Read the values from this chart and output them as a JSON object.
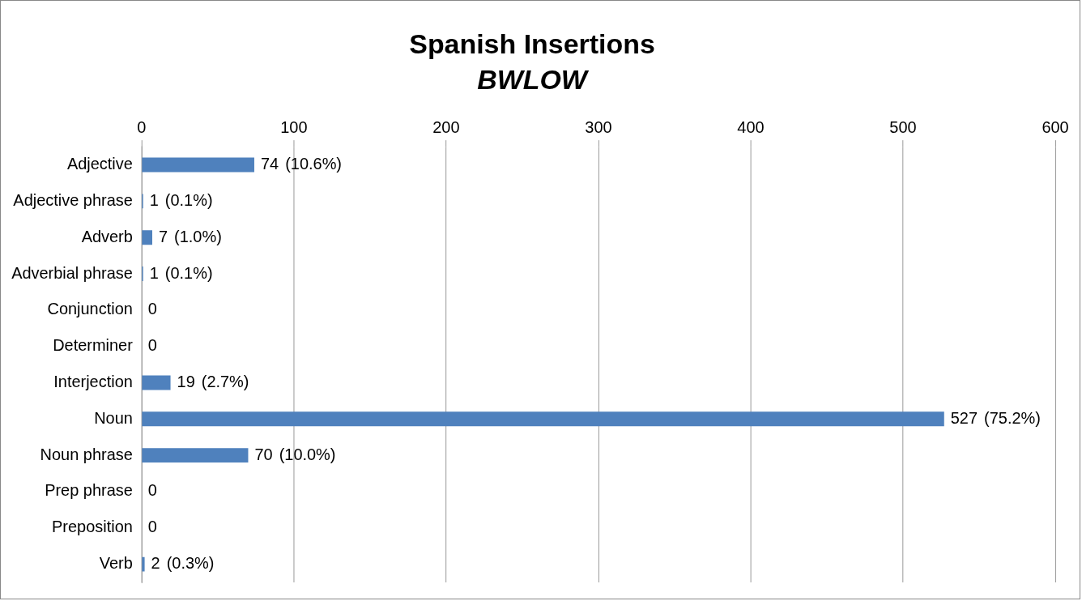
{
  "chart_data": {
    "type": "bar",
    "orientation": "horizontal",
    "title": "Spanish Insertions",
    "subtitle": "BWLOW",
    "categories": [
      "Adjective",
      "Adjective phrase",
      "Adverb",
      "Adverbial phrase",
      "Conjunction",
      "Determiner",
      "Interjection",
      "Noun",
      "Noun phrase",
      "Prep phrase",
      "Preposition",
      "Verb"
    ],
    "values": [
      74,
      1,
      7,
      1,
      0,
      0,
      19,
      527,
      70,
      0,
      0,
      2
    ],
    "color": "#4f81bd",
    "xlim": [
      0,
      600
    ],
    "xticks": [
      0,
      100,
      200,
      300,
      400,
      500,
      600
    ],
    "grid": "x",
    "legend": false,
    "data_labels": true,
    "annotations": [
      {
        "text": "(10.6%)",
        "x": 74,
        "y": "Adjective"
      },
      {
        "text": "(0.1%)",
        "x": 1,
        "y": "Adjective phrase"
      },
      {
        "text": "(1.0%)",
        "x": 7,
        "y": "Adverb"
      },
      {
        "text": "(0.1%)",
        "x": 1,
        "y": "Adverbial phrase"
      },
      {
        "text": "(2.7%)",
        "x": 19,
        "y": "Interjection"
      },
      {
        "text": "(75.2%)",
        "x": 527,
        "y": "Noun"
      },
      {
        "text": "(10.0%)",
        "x": 70,
        "y": "Noun phrase"
      },
      {
        "text": "(0.3%)",
        "x": 2,
        "y": "Verb"
      }
    ]
  }
}
